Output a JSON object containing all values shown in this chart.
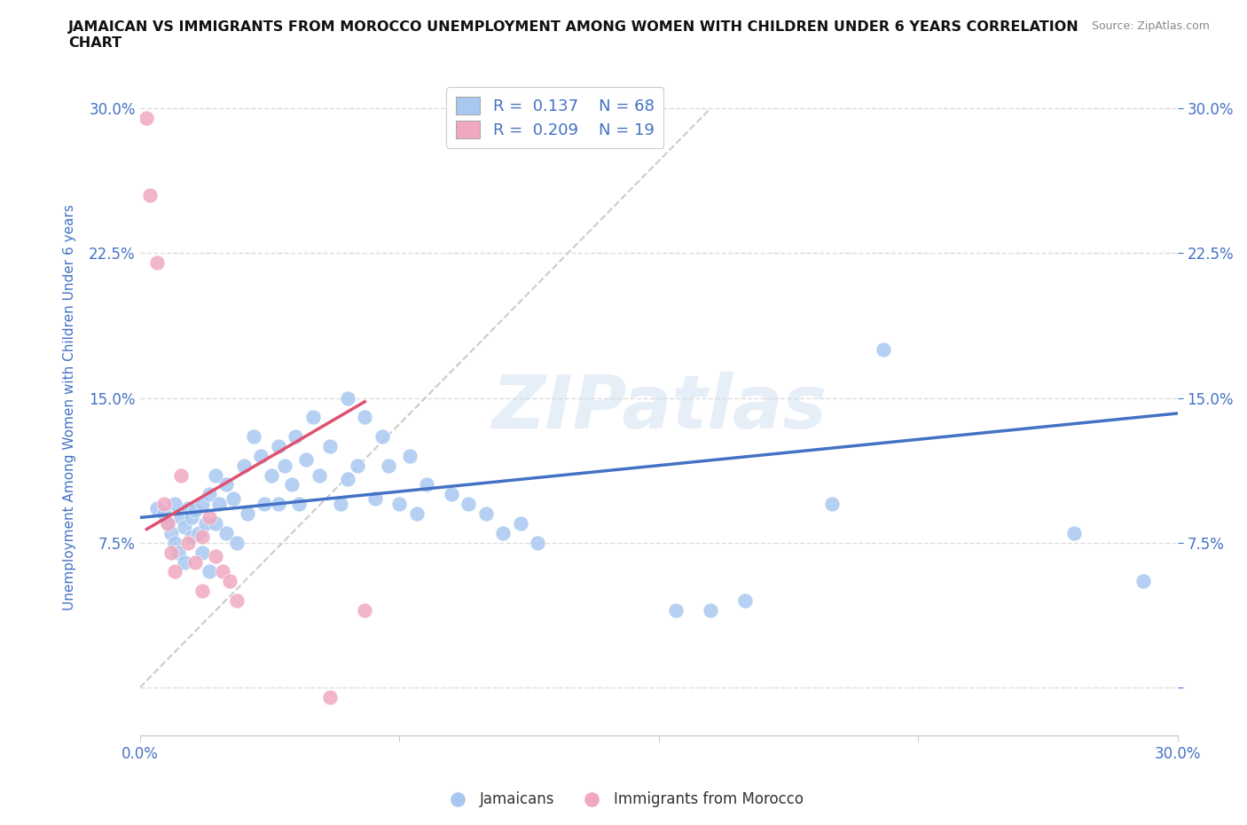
{
  "title": "JAMAICAN VS IMMIGRANTS FROM MOROCCO UNEMPLOYMENT AMONG WOMEN WITH CHILDREN UNDER 6 YEARS CORRELATION\nCHART",
  "source_text": "Source: ZipAtlas.com",
  "ylabel": "Unemployment Among Women with Children Under 6 years",
  "xlim": [
    0.0,
    0.3
  ],
  "ylim": [
    -0.025,
    0.315
  ],
  "xticks": [
    0.0,
    0.075,
    0.15,
    0.225,
    0.3
  ],
  "yticks": [
    0.0,
    0.075,
    0.15,
    0.225,
    0.3
  ],
  "xticklabels": [
    "0.0%",
    "",
    "",
    "",
    "30.0%"
  ],
  "yticklabels_left": [
    "",
    "7.5%",
    "15.0%",
    "22.5%",
    "30.0%"
  ],
  "yticklabels_right": [
    "",
    "7.5%",
    "15.0%",
    "22.5%",
    "30.0%"
  ],
  "watermark": "ZIPatlas",
  "blue_R": 0.137,
  "blue_N": 68,
  "pink_R": 0.209,
  "pink_N": 19,
  "blue_scatter_x": [
    0.005,
    0.007,
    0.008,
    0.009,
    0.01,
    0.01,
    0.011,
    0.012,
    0.013,
    0.013,
    0.014,
    0.015,
    0.015,
    0.016,
    0.017,
    0.018,
    0.018,
    0.019,
    0.02,
    0.02,
    0.022,
    0.022,
    0.023,
    0.025,
    0.025,
    0.027,
    0.028,
    0.03,
    0.031,
    0.033,
    0.035,
    0.036,
    0.038,
    0.04,
    0.04,
    0.042,
    0.044,
    0.045,
    0.046,
    0.048,
    0.05,
    0.052,
    0.055,
    0.058,
    0.06,
    0.06,
    0.063,
    0.065,
    0.068,
    0.07,
    0.072,
    0.075,
    0.078,
    0.08,
    0.083,
    0.09,
    0.095,
    0.1,
    0.105,
    0.11,
    0.115,
    0.155,
    0.165,
    0.175,
    0.2,
    0.215,
    0.27,
    0.29
  ],
  "blue_scatter_y": [
    0.093,
    0.09,
    0.085,
    0.08,
    0.095,
    0.075,
    0.07,
    0.088,
    0.083,
    0.065,
    0.093,
    0.088,
    0.078,
    0.092,
    0.08,
    0.095,
    0.07,
    0.085,
    0.1,
    0.06,
    0.11,
    0.085,
    0.095,
    0.105,
    0.08,
    0.098,
    0.075,
    0.115,
    0.09,
    0.13,
    0.12,
    0.095,
    0.11,
    0.125,
    0.095,
    0.115,
    0.105,
    0.13,
    0.095,
    0.118,
    0.14,
    0.11,
    0.125,
    0.095,
    0.15,
    0.108,
    0.115,
    0.14,
    0.098,
    0.13,
    0.115,
    0.095,
    0.12,
    0.09,
    0.105,
    0.1,
    0.095,
    0.09,
    0.08,
    0.085,
    0.075,
    0.04,
    0.04,
    0.045,
    0.095,
    0.175,
    0.08,
    0.055
  ],
  "pink_scatter_x": [
    0.002,
    0.003,
    0.005,
    0.007,
    0.008,
    0.009,
    0.01,
    0.012,
    0.014,
    0.016,
    0.018,
    0.018,
    0.02,
    0.022,
    0.024,
    0.026,
    0.028,
    0.055,
    0.065
  ],
  "pink_scatter_y": [
    0.295,
    0.255,
    0.22,
    0.095,
    0.085,
    0.07,
    0.06,
    0.11,
    0.075,
    0.065,
    0.05,
    0.078,
    0.088,
    0.068,
    0.06,
    0.055,
    0.045,
    -0.005,
    0.04
  ],
  "blue_line_x": [
    0.0,
    0.3
  ],
  "blue_line_y": [
    0.088,
    0.142
  ],
  "pink_line_x": [
    0.002,
    0.065
  ],
  "pink_line_y": [
    0.082,
    0.148
  ],
  "diag_line_x": [
    0.0,
    0.165
  ],
  "diag_line_y": [
    0.0,
    0.3
  ],
  "blue_color": "#a8c8f0",
  "pink_color": "#f0a8c0",
  "blue_line_color": "#4472c4",
  "pink_line_color": "#e05070",
  "diag_line_color": "#cccccc",
  "text_color_blue": "#4472c4",
  "grid_color": "#dddddd",
  "background_color": "#ffffff",
  "tick_color": "#4472c4"
}
